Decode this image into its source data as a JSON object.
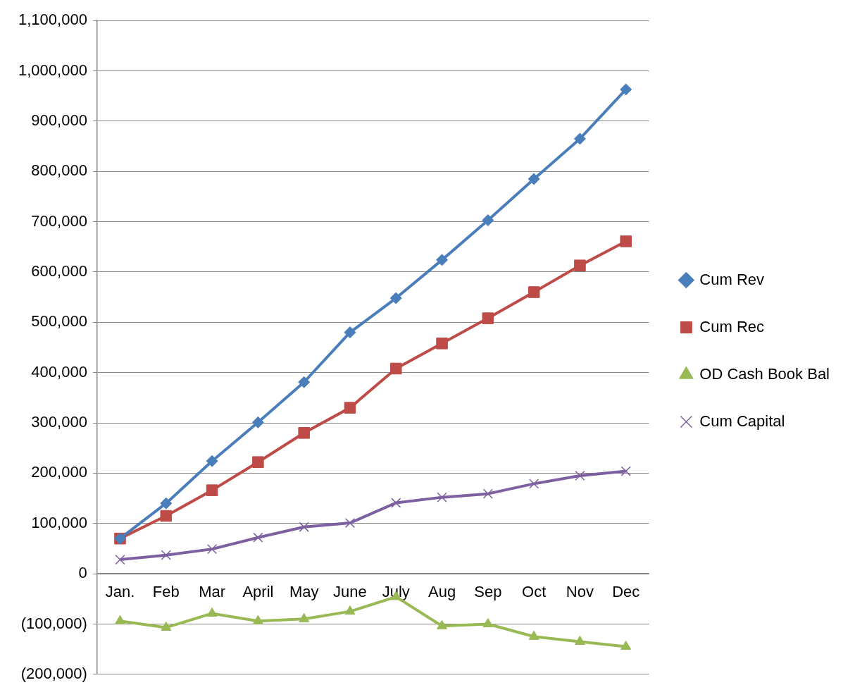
{
  "chart_data": {
    "type": "line",
    "categories": [
      "Jan.",
      "Feb",
      "Mar",
      "April",
      "May",
      "June",
      "July",
      "Aug",
      "Sep",
      "Oct",
      "Nov",
      "Dec"
    ],
    "series": [
      {
        "name": "Cum Rev",
        "color": "#4a7ebb",
        "marker": "diamond",
        "values": [
          70000,
          140000,
          224000,
          301000,
          381000,
          480000,
          548000,
          624000,
          703000,
          785000,
          865000,
          963000
        ]
      },
      {
        "name": "Cum Rec",
        "color": "#be4b48",
        "marker": "square",
        "values": [
          70000,
          115000,
          166000,
          222000,
          280000,
          330000,
          408000,
          458000,
          508000,
          560000,
          613000,
          661000
        ]
      },
      {
        "name": "OD Cash Book Bal",
        "color": "#98b954",
        "marker": "triangle",
        "values": [
          -94000,
          -107000,
          -79000,
          -94000,
          -90000,
          -75000,
          -46000,
          -104000,
          -100000,
          -125000,
          -135000,
          -145000
        ]
      },
      {
        "name": "Cum Capital",
        "color": "#7d60a0",
        "marker": "cross",
        "values": [
          28000,
          37000,
          49000,
          72000,
          93000,
          101000,
          141000,
          152000,
          159000,
          179000,
          195000,
          204000
        ]
      }
    ],
    "ylim": [
      -200000,
      1100000
    ],
    "yticks": [
      {
        "value": -200000,
        "label": "(200,000)"
      },
      {
        "value": -100000,
        "label": "(100,000)"
      },
      0,
      {
        "value": 100000,
        "label": "100,000"
      },
      {
        "value": 200000,
        "label": "200,000"
      },
      {
        "value": 300000,
        "label": "300,000"
      },
      {
        "value": 400000,
        "label": "400,000"
      },
      {
        "value": 500000,
        "label": "500,000"
      },
      {
        "value": 600000,
        "label": "600,000"
      },
      {
        "value": 700000,
        "label": "700,000"
      },
      {
        "value": 800000,
        "label": "800,000"
      },
      {
        "value": 900000,
        "label": "900,000"
      },
      {
        "value": 1000000,
        "label": "1,000,000"
      },
      {
        "value": 1100000,
        "label": "1,100,000"
      }
    ],
    "grid": "y",
    "legend": "right",
    "line_style": "solid"
  }
}
